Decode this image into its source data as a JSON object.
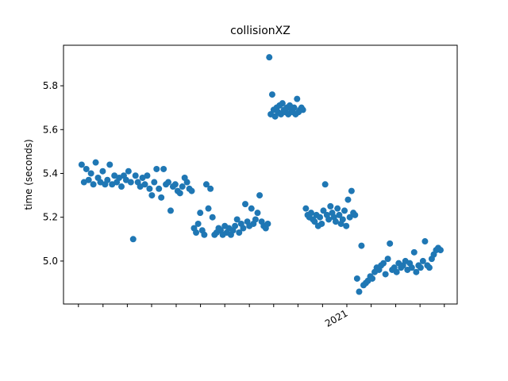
{
  "chart_data": {
    "type": "scatter",
    "title": "collisionXZ",
    "y_label": "time (seconds)",
    "xlim": [
      2020.032,
      2021.377
    ],
    "ylim": [
      4.804,
      5.985
    ],
    "xticks": [
      {
        "value": 2020.083,
        "label": null
      },
      {
        "value": 2020.167,
        "label": null
      },
      {
        "value": 2020.25,
        "label": null
      },
      {
        "value": 2020.333,
        "label": null
      },
      {
        "value": 2020.417,
        "label": null
      },
      {
        "value": 2020.5,
        "label": null
      },
      {
        "value": 2020.583,
        "label": null
      },
      {
        "value": 2020.667,
        "label": null
      },
      {
        "value": 2020.75,
        "label": null
      },
      {
        "value": 2020.833,
        "label": null
      },
      {
        "value": 2020.917,
        "label": null
      },
      2021,
      {
        "value": 2021.083,
        "label": null
      },
      {
        "value": 2021.167,
        "label": null
      },
      {
        "value": 2021.25,
        "label": null
      },
      {
        "value": 2021.333,
        "label": null
      }
    ],
    "yticks": [
      {
        "value": 5,
        "label": "5.0"
      },
      5.2,
      5.4,
      5.6,
      5.8
    ],
    "series": [
      {
        "color": "#1f77b4",
        "x": [
          2020.094,
          2020.102,
          2020.11,
          2020.118,
          2020.126,
          2020.134,
          2020.142,
          2020.15,
          2020.158,
          2020.166,
          2020.174,
          2020.182,
          2020.19,
          2020.198,
          2020.206,
          2020.214,
          2020.222,
          2020.23,
          2020.238,
          2020.246,
          2020.254,
          2020.262,
          2020.27,
          2020.278,
          2020.286,
          2020.294,
          2020.302,
          2020.31,
          2020.318,
          2020.326,
          2020.334,
          2020.342,
          2020.35,
          2020.358,
          2020.366,
          2020.374,
          2020.382,
          2020.39,
          2020.398,
          2020.406,
          2020.414,
          2020.422,
          2020.43,
          2020.438,
          2020.446,
          2020.454,
          2020.462,
          2020.47,
          2020.478,
          2020.485,
          2020.492,
          2020.499,
          2020.506,
          2020.513,
          2020.52,
          2020.527,
          2020.534,
          2020.541,
          2020.548,
          2020.555,
          2020.562,
          2020.569,
          2020.576,
          2020.583,
          2020.59,
          2020.597,
          2020.604,
          2020.611,
          2020.618,
          2020.625,
          2020.632,
          2020.639,
          2020.646,
          2020.653,
          2020.66,
          2020.667,
          2020.674,
          2020.681,
          2020.688,
          2020.695,
          2020.702,
          2020.709,
          2020.716,
          2020.723,
          2020.73,
          2020.735,
          2020.74,
          2020.745,
          2020.75,
          2020.755,
          2020.76,
          2020.765,
          2020.77,
          2020.775,
          2020.78,
          2020.785,
          2020.79,
          2020.795,
          2020.8,
          2020.805,
          2020.81,
          2020.815,
          2020.82,
          2020.825,
          2020.83,
          2020.835,
          2020.84,
          2020.845,
          2020.85,
          2020.86,
          2020.866,
          2020.872,
          2020.878,
          2020.884,
          2020.89,
          2020.896,
          2020.902,
          2020.908,
          2020.914,
          2020.92,
          2020.926,
          2020.932,
          2020.938,
          2020.944,
          2020.95,
          2020.956,
          2020.962,
          2020.968,
          2020.974,
          2020.98,
          2020.986,
          2020.992,
          2020.998,
          2021.004,
          2021.01,
          2021.016,
          2021.022,
          2021.028,
          2021.035,
          2021.042,
          2021.05,
          2021.057,
          2021.065,
          2021.072,
          2021.08,
          2021.087,
          2021.095,
          2021.102,
          2021.11,
          2021.117,
          2021.125,
          2021.132,
          2021.14,
          2021.147,
          2021.155,
          2021.162,
          2021.17,
          2021.177,
          2021.185,
          2021.192,
          2021.2,
          2021.207,
          2021.215,
          2021.222,
          2021.23,
          2021.237,
          2021.245,
          2021.252,
          2021.26,
          2021.267,
          2021.275,
          2021.282,
          2021.29,
          2021.297,
          2021.305,
          2021.312,
          2021.32
        ],
        "values": [
          5.44,
          5.36,
          5.42,
          5.37,
          5.4,
          5.35,
          5.45,
          5.38,
          5.36,
          5.41,
          5.35,
          5.37,
          5.44,
          5.35,
          5.39,
          5.36,
          5.38,
          5.34,
          5.39,
          5.37,
          5.41,
          5.36,
          5.1,
          5.39,
          5.36,
          5.34,
          5.38,
          5.35,
          5.39,
          5.33,
          5.3,
          5.36,
          5.42,
          5.33,
          5.29,
          5.42,
          5.35,
          5.36,
          5.23,
          5.34,
          5.35,
          5.32,
          5.31,
          5.34,
          5.38,
          5.36,
          5.33,
          5.32,
          5.15,
          5.13,
          5.17,
          5.22,
          5.14,
          5.12,
          5.35,
          5.24,
          5.33,
          5.2,
          5.12,
          5.13,
          5.15,
          5.14,
          5.12,
          5.16,
          5.13,
          5.15,
          5.12,
          5.14,
          5.16,
          5.19,
          5.13,
          5.17,
          5.15,
          5.26,
          5.18,
          5.16,
          5.24,
          5.17,
          5.19,
          5.22,
          5.3,
          5.18,
          5.16,
          5.15,
          5.17,
          5.93,
          5.67,
          5.76,
          5.69,
          5.66,
          5.7,
          5.68,
          5.71,
          5.67,
          5.72,
          5.69,
          5.68,
          5.7,
          5.67,
          5.71,
          5.69,
          5.68,
          5.7,
          5.67,
          5.74,
          5.68,
          5.69,
          5.7,
          5.69,
          5.24,
          5.21,
          5.2,
          5.22,
          5.19,
          5.18,
          5.21,
          5.16,
          5.2,
          5.17,
          5.23,
          5.35,
          5.21,
          5.19,
          5.25,
          5.22,
          5.2,
          5.18,
          5.24,
          5.21,
          5.17,
          5.19,
          5.23,
          5.16,
          5.28,
          5.2,
          5.32,
          5.22,
          5.21,
          4.92,
          4.86,
          5.07,
          4.89,
          4.9,
          4.91,
          4.93,
          4.92,
          4.95,
          4.97,
          4.96,
          4.98,
          4.99,
          4.94,
          5.01,
          5.08,
          4.96,
          4.97,
          4.95,
          4.99,
          4.97,
          4.98,
          5.0,
          4.96,
          4.99,
          4.97,
          5.04,
          4.95,
          4.98,
          4.97,
          5.0,
          5.09,
          4.98,
          4.97,
          5.01,
          5.03,
          5.05,
          5.06,
          5.05
        ]
      }
    ]
  }
}
